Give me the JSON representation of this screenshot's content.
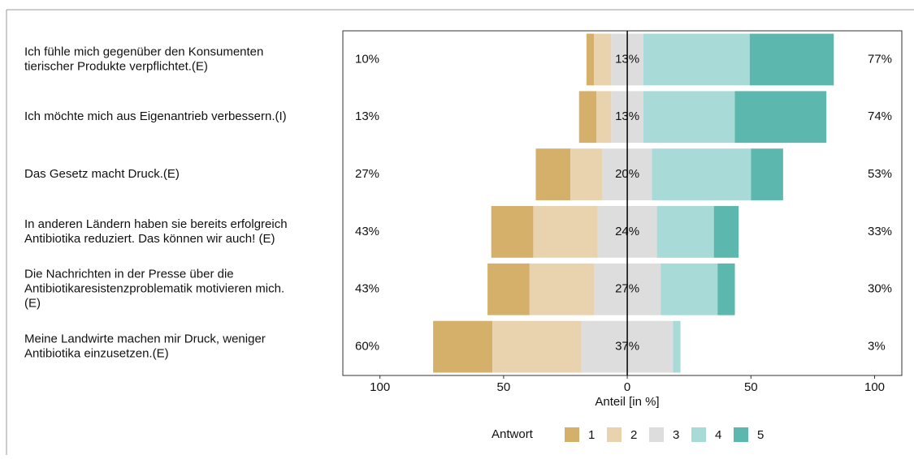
{
  "chart_data": {
    "type": "diverging_bar",
    "categories": [
      [
        "Ich fühle mich gegenüber den Konsumenten",
        "tierischer Produkte verpflichtet.(E)"
      ],
      [
        "Ich möchte mich aus Eigenantrieb verbessern.(I)"
      ],
      [
        "Das Gesetz macht Druck.(E)"
      ],
      [
        "In anderen Ländern haben sie bereits erfolgreich",
        "Antibiotika reduziert. Das können wir auch! (E)"
      ],
      [
        "Die Nachrichten in der Presse über die",
        "Antibiotikaresistenzproblematik motivieren mich.",
        "(E)"
      ],
      [
        "Meine Landwirte machen mir Druck, weniger",
        "Antibiotika einzusetzen.(E)"
      ]
    ],
    "series": [
      {
        "name": "1",
        "color": "#d4b06a",
        "values": [
          3,
          7,
          14,
          17,
          17,
          24
        ]
      },
      {
        "name": "2",
        "color": "#e9d3ae",
        "values": [
          7,
          6,
          13,
          26,
          26,
          36
        ]
      },
      {
        "name": "3",
        "color": "#dddddd",
        "values": [
          13,
          13,
          20,
          24,
          27,
          37
        ],
        "value_labels": [
          "13%",
          "13%",
          "20%",
          "24%",
          "27%",
          "37%"
        ]
      },
      {
        "name": "4",
        "color": "#a8dbd7",
        "values": [
          43,
          37,
          40,
          23,
          23,
          3
        ]
      },
      {
        "name": "5",
        "color": "#5cb8ae",
        "values": [
          34,
          37,
          13,
          10,
          7,
          0
        ]
      }
    ],
    "left_labels": [
      "10%",
      "13%",
      "27%",
      "43%",
      "43%",
      "60%"
    ],
    "right_labels": [
      "77%",
      "74%",
      "53%",
      "33%",
      "30%",
      "3%"
    ],
    "xlabel": "Anteil [in %]",
    "xlim": [
      -115,
      111
    ],
    "xticks": [
      {
        "value": -100,
        "label": "100"
      },
      {
        "value": -50,
        "label": "50"
      },
      0,
      50,
      100
    ],
    "legend_title": "Antwort",
    "legend": "bottom"
  }
}
